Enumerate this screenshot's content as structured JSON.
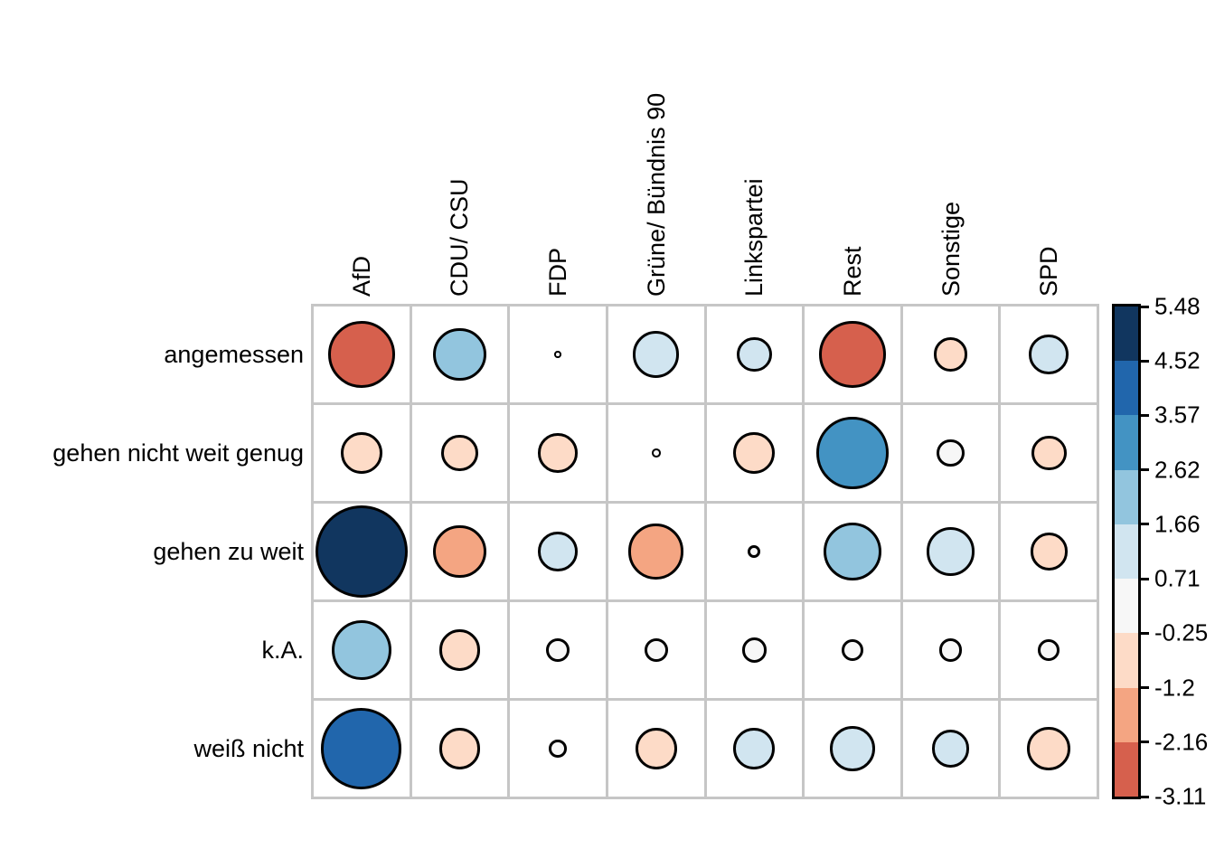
{
  "chart_data": {
    "type": "heatmap",
    "variant": "corrplot-balloon",
    "title": "",
    "columns": [
      "AfD",
      "CDU/ CSU",
      "FDP",
      "Grüne/ Bündnis 90",
      "Linkspartei",
      "Rest",
      "Sonstige",
      "SPD"
    ],
    "rows": [
      "angemessen",
      "gehen nicht weit genug",
      "gehen zu weit",
      "k.A.",
      "weiß nicht"
    ],
    "values": [
      [
        -2.9,
        1.8,
        0.03,
        1.4,
        0.8,
        -2.9,
        -0.75,
        1.0
      ],
      [
        -1.1,
        -0.85,
        -1.0,
        -0.05,
        -1.1,
        3.3,
        0.5,
        -0.8
      ],
      [
        5.48,
        -1.8,
        1.0,
        -2.0,
        -0.1,
        2.2,
        1.5,
        -0.9
      ],
      [
        2.3,
        -1.1,
        0.35,
        0.35,
        0.4,
        0.3,
        0.35,
        0.3
      ],
      [
        4.2,
        -1.1,
        0.2,
        -1.1,
        1.1,
        1.3,
        0.9,
        -1.2
      ]
    ],
    "value_range": [
      -3.11,
      5.48
    ],
    "legend_position": "right",
    "grid": true,
    "colorbar": {
      "tick_labels": [
        "5.48",
        "4.52",
        "3.57",
        "2.62",
        "1.66",
        "0.71",
        "-0.25",
        "-1.2",
        "-2.16",
        "-3.11"
      ],
      "tick_values": [
        5.48,
        4.52,
        3.57,
        2.62,
        1.66,
        0.71,
        -0.25,
        -1.2,
        -2.16,
        -3.11
      ],
      "segment_colors_top_to_bottom": [
        "#11365f",
        "#2166ac",
        "#4393c3",
        "#92c5de",
        "#d1e5f0",
        "#f7f7f7",
        "#fddbc7",
        "#f4a582",
        "#d6604d"
      ]
    },
    "style": {
      "grid_line_color": "#c6c6c6",
      "circle_outline_color": "#000000",
      "background_color": "#ffffff",
      "max_positive_color": "#11365f",
      "max_negative_color": "#d6604d"
    }
  }
}
